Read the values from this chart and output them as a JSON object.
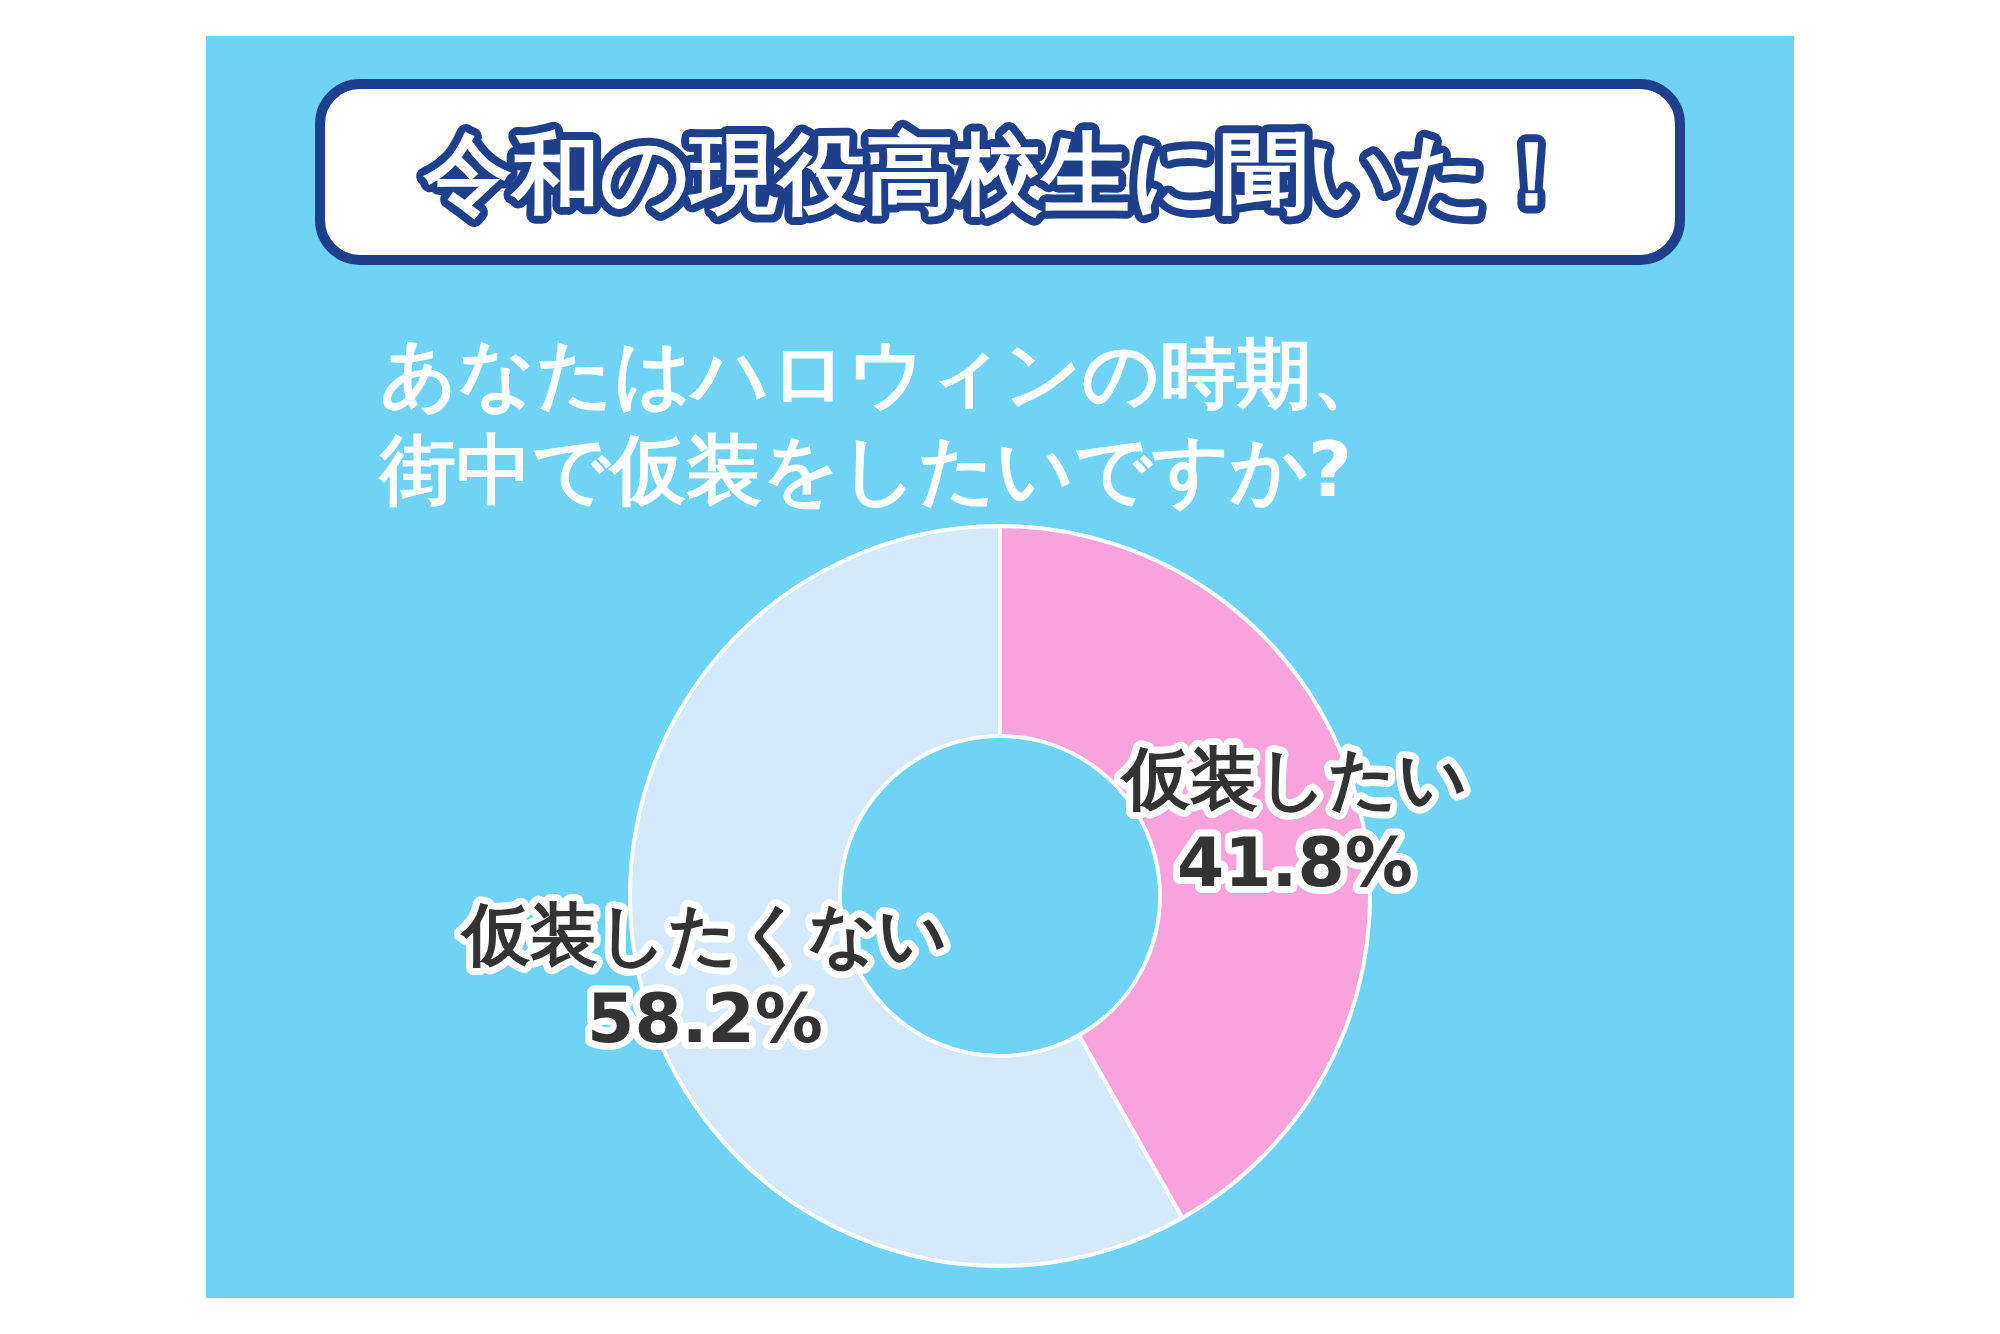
{
  "chart_data": {
    "type": "donut",
    "title": "令和の現役高校生に聞いた！",
    "subtitle": "あなたはハロウィンの時期、街中で仮装をしたいですか?",
    "categories": [
      "仮装したい",
      "仮装したくない"
    ],
    "values": [
      41.8,
      58.2
    ],
    "value_labels": [
      "41.8%",
      "58.2%"
    ],
    "colors": [
      "#f9a3dd",
      "#d5e9fc"
    ],
    "data_labels": true
  }
}
